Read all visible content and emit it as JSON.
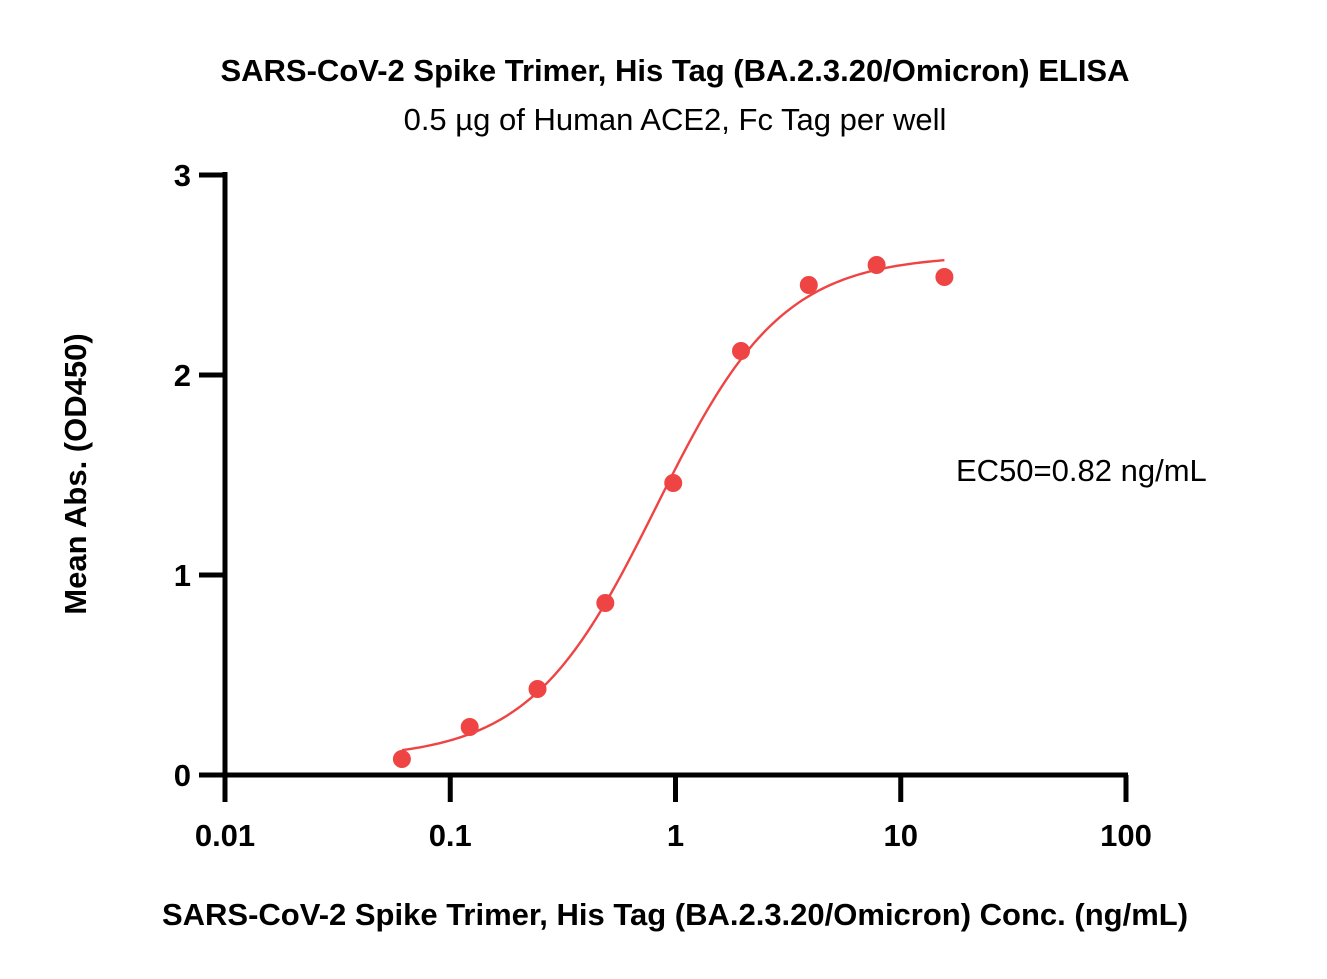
{
  "chart_data": {
    "type": "scatter",
    "title": "SARS-CoV-2 Spike Trimer, His Tag (BA.2.3.20/Omicron) ELISA",
    "subtitle": "0.5 µg of Human ACE2, Fc Tag per well",
    "xlabel": "SARS-CoV-2 Spike Trimer, His Tag (BA.2.3.20/Omicron) Conc. (ng/mL)",
    "ylabel": "Mean Abs. (OD450)",
    "x_scale": "log",
    "xlim": [
      0.01,
      100
    ],
    "ylim": [
      0,
      3
    ],
    "x_ticks": [
      0.01,
      0.1,
      1,
      10,
      100
    ],
    "x_tick_labels": [
      "0.01",
      "0.1",
      "1",
      "10",
      "100"
    ],
    "y_ticks": [
      0,
      1,
      2,
      3
    ],
    "y_tick_labels": [
      "0",
      "1",
      "2",
      "3"
    ],
    "grid": false,
    "annotation": "EC50=0.82 ng/mL",
    "color": "#ef4444",
    "series": [
      {
        "x": [
          0.061,
          0.122,
          0.244,
          0.488,
          0.977,
          1.953,
          3.906,
          7.813,
          15.625
        ],
        "y": [
          0.08,
          0.24,
          0.43,
          0.86,
          1.46,
          2.12,
          2.45,
          2.55,
          2.49
        ]
      }
    ],
    "fit": {
      "type": "4PL",
      "bottom": 0.08,
      "top": 2.6,
      "ec50": 0.82,
      "hill": 1.55,
      "x_range": [
        0.061,
        15.625
      ]
    }
  }
}
